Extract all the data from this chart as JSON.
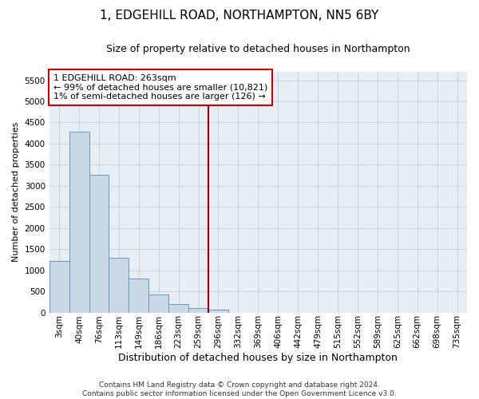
{
  "title": "1, EDGEHILL ROAD, NORTHAMPTON, NN5 6BY",
  "subtitle": "Size of property relative to detached houses in Northampton",
  "xlabel": "Distribution of detached houses by size in Northampton",
  "ylabel": "Number of detached properties",
  "categories": [
    "3sqm",
    "40sqm",
    "76sqm",
    "113sqm",
    "149sqm",
    "186sqm",
    "223sqm",
    "259sqm",
    "296sqm",
    "332sqm",
    "369sqm",
    "406sqm",
    "442sqm",
    "479sqm",
    "515sqm",
    "552sqm",
    "589sqm",
    "625sqm",
    "662sqm",
    "698sqm",
    "735sqm"
  ],
  "values": [
    1220,
    4280,
    3260,
    1290,
    800,
    420,
    200,
    100,
    75,
    0,
    0,
    0,
    0,
    0,
    0,
    0,
    0,
    0,
    0,
    0,
    0
  ],
  "bar_color": "#c9d9e8",
  "bar_edge_color": "#6699bb",
  "marker_index": 7,
  "marker_line_color": "#990000",
  "annotation_text": "1 EDGEHILL ROAD: 263sqm\n← 99% of detached houses are smaller (10,821)\n1% of semi-detached houses are larger (126) →",
  "annotation_box_color": "#cc0000",
  "ylim": [
    0,
    5700
  ],
  "yticks": [
    0,
    500,
    1000,
    1500,
    2000,
    2500,
    3000,
    3500,
    4000,
    4500,
    5000,
    5500
  ],
  "grid_color": "#cccccc",
  "bg_color": "#e8eef5",
  "footer": "Contains HM Land Registry data © Crown copyright and database right 2024.\nContains public sector information licensed under the Open Government Licence v3.0.",
  "title_fontsize": 11,
  "subtitle_fontsize": 9,
  "xlabel_fontsize": 9,
  "ylabel_fontsize": 8,
  "tick_fontsize": 7.5,
  "ann_fontsize": 8
}
